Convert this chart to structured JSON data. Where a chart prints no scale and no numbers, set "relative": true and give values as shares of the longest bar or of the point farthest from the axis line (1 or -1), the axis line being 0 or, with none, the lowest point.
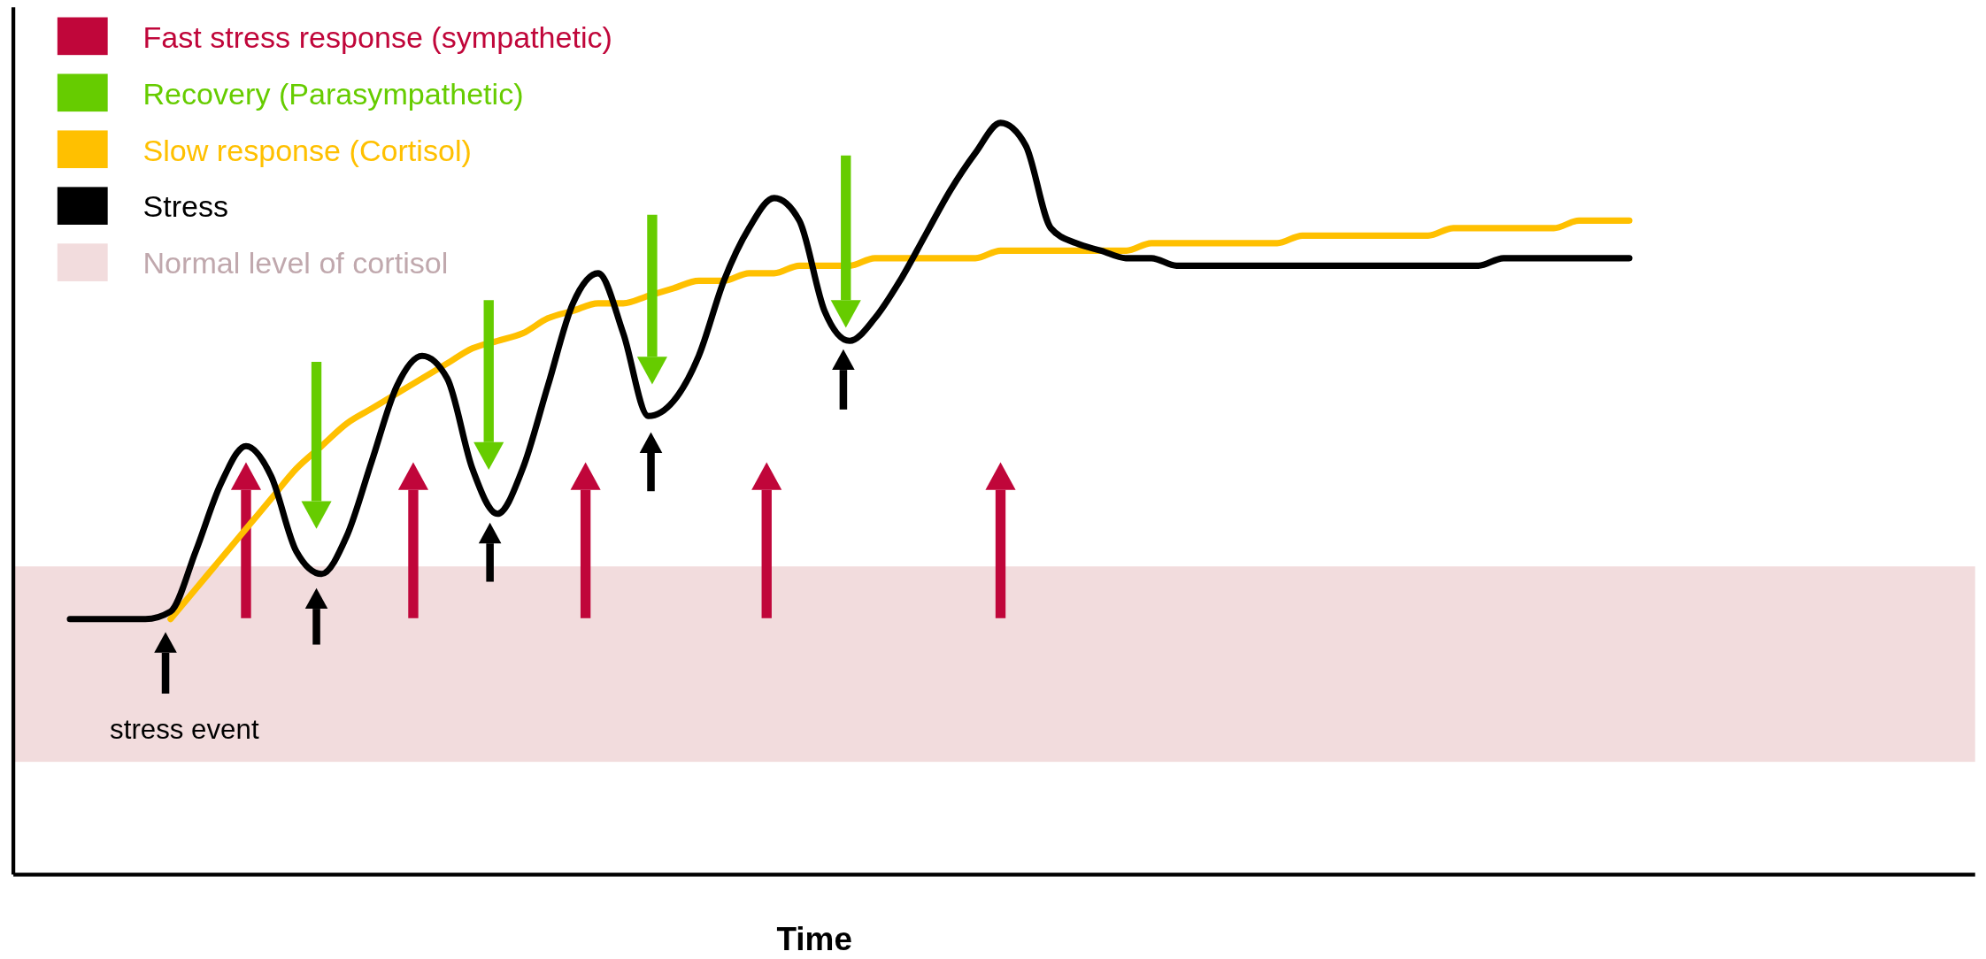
{
  "chart_data": {
    "type": "line",
    "relative": true,
    "xlabel": "Time",
    "legend": "top left",
    "line_style": "solid",
    "categories": [
      null,
      null,
      null,
      null,
      null,
      null,
      null,
      null,
      null,
      null,
      null,
      null,
      null,
      null,
      null,
      null,
      null,
      null,
      null,
      null,
      null,
      null,
      null,
      null,
      null,
      null,
      null,
      null,
      null,
      null,
      null,
      null,
      null,
      null,
      null,
      null,
      null,
      null,
      null,
      null,
      null,
      null,
      null,
      null,
      null,
      null,
      null,
      null,
      null,
      null,
      null,
      null,
      null,
      null,
      null,
      null,
      null,
      null,
      null,
      null,
      null,
      null,
      null
    ],
    "series": [
      {
        "name": "Slow response (Cortisol)",
        "color": "#ffc000",
        "values": [
          null,
          null,
          null,
          null,
          0.34,
          0.38,
          0.42,
          0.46,
          0.5,
          0.54,
          0.57,
          0.6,
          0.62,
          0.64,
          0.66,
          0.68,
          0.7,
          0.71,
          0.72,
          0.74,
          0.75,
          0.76,
          0.76,
          0.77,
          0.78,
          0.79,
          0.79,
          0.8,
          0.8,
          0.81,
          0.81,
          0.81,
          0.82,
          0.82,
          0.82,
          0.82,
          0.82,
          0.83,
          0.83,
          0.83,
          0.83,
          0.83,
          0.83,
          0.84,
          0.84,
          0.84,
          0.84,
          0.84,
          0.84,
          0.85,
          0.85,
          0.85,
          0.85,
          0.85,
          0.85,
          0.86,
          0.86,
          0.86,
          0.86,
          0.86,
          0.87,
          0.87,
          0.87
        ]
      },
      {
        "name": "Stress",
        "color": "#000000",
        "values": [
          0.34,
          0.34,
          0.34,
          0.34,
          0.35,
          0.43,
          0.52,
          0.57,
          0.53,
          0.43,
          0.4,
          0.45,
          0.55,
          0.65,
          0.69,
          0.66,
          0.54,
          0.48,
          0.54,
          0.65,
          0.76,
          0.8,
          0.72,
          0.61,
          0.63,
          0.69,
          0.79,
          0.86,
          0.9,
          0.87,
          0.75,
          0.71,
          0.74,
          0.79,
          0.85,
          0.91,
          0.96,
          1,
          0.97,
          0.86,
          0.84,
          0.83,
          0.82,
          0.82,
          0.81,
          0.81,
          0.81,
          0.81,
          0.81,
          0.81,
          0.81,
          0.81,
          0.81,
          0.81,
          0.81,
          0.81,
          0.81,
          0.82,
          0.82,
          0.82,
          0.82,
          0.82,
          0.82
        ]
      }
    ],
    "bands": [
      {
        "axis": "y",
        "from": 0.15,
        "to": 0.41,
        "label": "Normal level of cortisol",
        "color": "#f2dcdd"
      }
    ],
    "annotations": [
      "Fast stress response (sympathetic)",
      "Recovery (Parasympathetic)",
      "stress event"
    ]
  }
}
